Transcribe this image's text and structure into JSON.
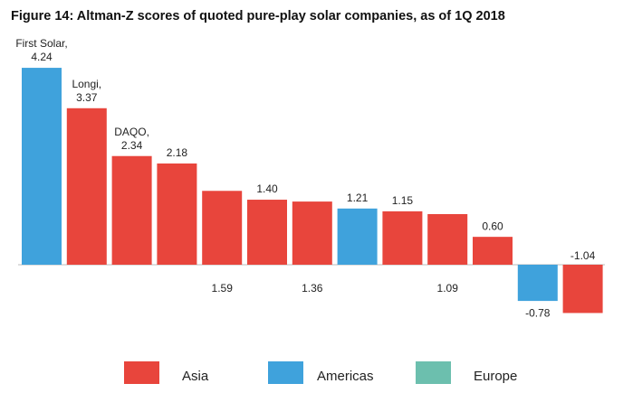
{
  "chart_data": {
    "type": "bar",
    "title": "Figure 14: Altman-Z scores of quoted pure-play solar companies, as of 1Q 2018",
    "categories": [
      "First Solar,",
      "Longi,",
      "DAQO,",
      null,
      null,
      null,
      null,
      null,
      null,
      null,
      null,
      null,
      null
    ],
    "series": [
      {
        "name": "Asia",
        "color": "#e8453c",
        "values": [
          null,
          3.37,
          2.34,
          2.18,
          1.59,
          1.4,
          1.36,
          null,
          1.15,
          1.09,
          0.6,
          null,
          -1.04
        ],
        "value_labels": [
          null,
          "3.37",
          "2.34",
          "2.18",
          "1.59",
          "1.40",
          "1.36",
          null,
          "1.15",
          "1.09",
          "0.60",
          null,
          "-1.04"
        ]
      },
      {
        "name": "Americas",
        "color": "#3fa2dc",
        "values": [
          4.24,
          null,
          null,
          null,
          null,
          null,
          null,
          1.21,
          null,
          null,
          null,
          -0.78,
          null
        ],
        "value_labels": [
          "4.24",
          null,
          null,
          null,
          null,
          null,
          null,
          "1.21",
          null,
          null,
          null,
          "-0.78",
          null
        ]
      },
      {
        "name": "Europe",
        "color": "#6cbfae",
        "values": [
          null,
          null,
          null,
          null,
          null,
          null,
          null,
          null,
          null,
          null,
          null,
          null,
          null
        ]
      }
    ]
  }
}
